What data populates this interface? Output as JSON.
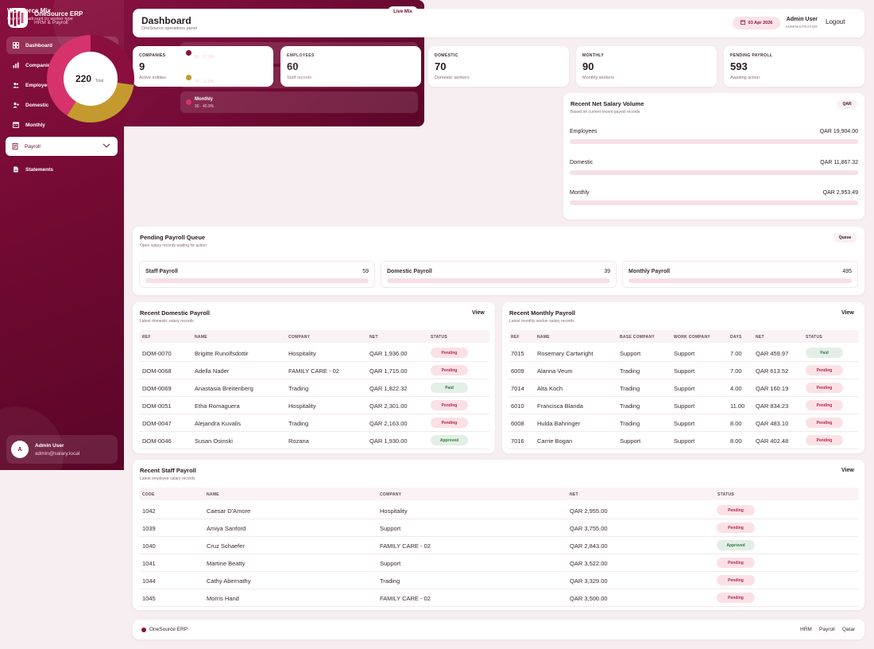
{
  "app": {
    "title": "OneSource ERP",
    "subtitle": "HRM & Payroll"
  },
  "nav": [
    {
      "label": "Dashboard",
      "icon": "grid-icon",
      "active": true
    },
    {
      "label": "Companies",
      "icon": "bar-chart-icon"
    },
    {
      "label": "Employees",
      "icon": "users-icon"
    },
    {
      "label": "Domestic",
      "icon": "user-plus-icon"
    },
    {
      "label": "Monthly",
      "icon": "calendar-icon"
    },
    {
      "label": "Payroll",
      "icon": "document-icon",
      "expanded": true
    },
    {
      "label": "Statements",
      "icon": "file-icon"
    }
  ],
  "user": {
    "initial": "A",
    "name": "Admin User",
    "email": "admin@salary.local"
  },
  "header": {
    "title": "Dashboard",
    "subtitle": "OneSource operations panel",
    "date": "03 Apr 2026",
    "user_name": "Admin User",
    "user_role": "ADMINISTRATOR",
    "logout": "Logout"
  },
  "stats": [
    {
      "label": "COMPANIES",
      "value": "9",
      "note": "Active entities"
    },
    {
      "label": "EMPLOYEES",
      "value": "60",
      "note": "Staff records"
    },
    {
      "label": "DOMESTIC",
      "value": "70",
      "note": "Domestic workers"
    },
    {
      "label": "MONTHLY",
      "value": "90",
      "note": "Monthly workers"
    },
    {
      "label": "PENDING PAYROLL",
      "value": "593",
      "note": "Awaiting action"
    }
  ],
  "workforce": {
    "title": "Workforce Mix",
    "subtitle": "Current headcount by worker type",
    "live_label": "Live Mix",
    "total": "220",
    "total_label": "Total",
    "colors": {
      "employees": "#8a0e3e",
      "domestic": "#c49a2e",
      "monthly": "#d6336c"
    }
  },
  "chart_data": {
    "type": "pie",
    "donut": true,
    "categories": [
      "Employees",
      "Domestic",
      "Monthly"
    ],
    "values": [
      60,
      70,
      90
    ],
    "labels": [
      "60 · 27.3%",
      "70 · 31.8%",
      "90 · 40.9%"
    ]
  },
  "salary": {
    "title": "Recent Net Salary Volume",
    "subtitle": "Based on current recent payroll records",
    "currency_pill": "QAR",
    "rows": [
      {
        "label": "Employees",
        "amount": "QAR 19,904.00"
      },
      {
        "label": "Domestic",
        "amount": "QAR 11,867.32"
      },
      {
        "label": "Monthly",
        "amount": "QAR 2,953.49"
      }
    ]
  },
  "queue": {
    "title": "Pending Payroll Queue",
    "subtitle": "Open salary records waiting for action",
    "pill": "Queue",
    "items": [
      {
        "label": "Staff Payroll",
        "count": "59"
      },
      {
        "label": "Domestic Payroll",
        "count": "39"
      },
      {
        "label": "Monthly Payroll",
        "count": "495"
      }
    ]
  },
  "domestic": {
    "title": "Recent Domestic Payroll",
    "subtitle": "Latest domestic salary records",
    "view": "View",
    "columns": [
      "REF",
      "NAME",
      "COMPANY",
      "NET",
      "STATUS"
    ],
    "rows": [
      [
        "DOM-0070",
        "Brigitte Runolfsdottir",
        "Hospitality",
        "QAR 1,936.00",
        "Pending"
      ],
      [
        "DOM-0068",
        "Adella Nader",
        "FAMILY CARE - 02",
        "QAR 1,715.00",
        "Pending"
      ],
      [
        "DOM-0069",
        "Anastasia Breitenberg",
        "Trading",
        "QAR 1,822.32",
        "Paid"
      ],
      [
        "DOM-0051",
        "Etha Romaguera",
        "Hospitality",
        "QAR 2,301.00",
        "Pending"
      ],
      [
        "DOM-0047",
        "Alejandra Kuvalis",
        "Trading",
        "QAR 2,163.00",
        "Pending"
      ],
      [
        "DOM-0046",
        "Susan Osinski",
        "Rozana",
        "QAR 1,930.00",
        "Approved"
      ]
    ]
  },
  "monthly": {
    "title": "Recent Monthly Payroll",
    "subtitle": "Latest monthly worker salary records",
    "view": "View",
    "columns": [
      "REF",
      "NAME",
      "BASE COMPANY",
      "WORK COMPANY",
      "DAYS",
      "NET",
      "STATUS"
    ],
    "rows": [
      [
        "7015",
        "Rosemary Cartwright",
        "Support",
        "Support",
        "7.00",
        "QAR 459.97",
        "Paid"
      ],
      [
        "6009",
        "Alanna Veum",
        "Trading",
        "Support",
        "7.00",
        "QAR 613.52",
        "Pending"
      ],
      [
        "7014",
        "Alta Koch",
        "Trading",
        "Support",
        "4.00",
        "QAR 160.19",
        "Pending"
      ],
      [
        "6010",
        "Francisca Blanda",
        "Trading",
        "Support",
        "11.00",
        "QAR 834.23",
        "Pending"
      ],
      [
        "6008",
        "Hulda Bahringer",
        "Trading",
        "Support",
        "8.00",
        "QAR 483.10",
        "Pending"
      ],
      [
        "7016",
        "Carrie Bogan",
        "Support",
        "Support",
        "8.00",
        "QAR 402.48",
        "Pending"
      ]
    ]
  },
  "staff": {
    "title": "Recent Staff Payroll",
    "subtitle": "Latest employee salary records",
    "view": "View",
    "columns": [
      "CODE",
      "NAME",
      "COMPANY",
      "NET",
      "STATUS"
    ],
    "rows": [
      [
        "1042",
        "Caesar D'Amore",
        "Hospitality",
        "QAR 2,955.00",
        "Pending"
      ],
      [
        "1039",
        "Amiya Sanford",
        "Support",
        "QAR 3,755.00",
        "Pending"
      ],
      [
        "1040",
        "Cruz Schaefer",
        "FAMILY CARE - 02",
        "QAR 2,843.00",
        "Approved"
      ],
      [
        "1041",
        "Martine Beatty",
        "Support",
        "QAR 3,522.00",
        "Pending"
      ],
      [
        "1044",
        "Cathy Abernathy",
        "Trading",
        "QAR 3,329.00",
        "Pending"
      ],
      [
        "1045",
        "Morris Hand",
        "FAMILY CARE - 02",
        "QAR 3,500.00",
        "Pending"
      ]
    ]
  },
  "footer": {
    "brand": "OneSource ERP",
    "links": [
      "HRM",
      "Payroll",
      "Qatar"
    ]
  }
}
